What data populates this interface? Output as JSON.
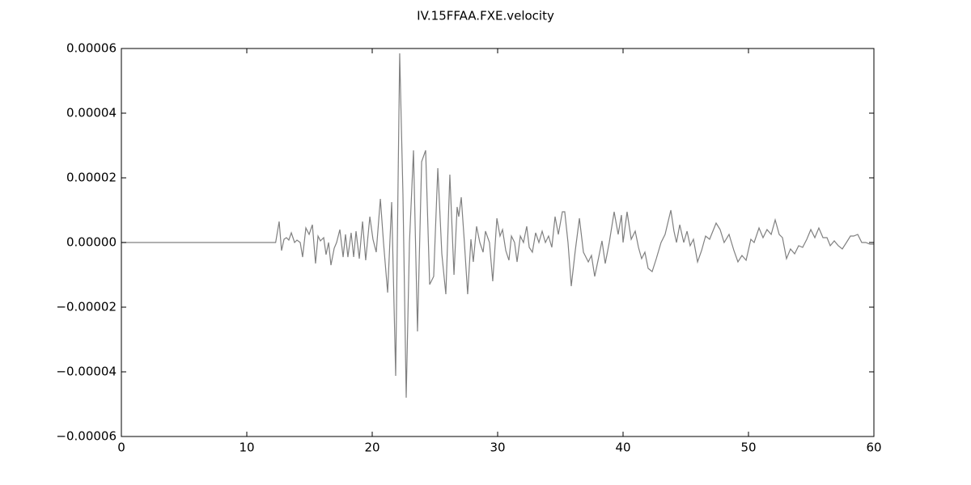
{
  "chart_data": {
    "type": "line",
    "title": "IV.15FFAA.FXE.velocity",
    "color": "#808080",
    "xlim": [
      0,
      60
    ],
    "xticks": [
      0,
      10,
      20,
      30,
      40,
      50,
      60
    ],
    "ylim": [
      -6e-05,
      6e-05
    ],
    "yticks": [
      {
        "value": -6e-05,
        "label": "−0.00006"
      },
      {
        "value": -4e-05,
        "label": "−0.00004"
      },
      {
        "value": -2e-05,
        "label": "−0.00002"
      },
      {
        "value": 0,
        "label": "0.00000"
      },
      {
        "value": 2e-05,
        "label": "0.00002"
      },
      {
        "value": 4e-05,
        "label": "0.00004"
      },
      {
        "value": 6e-05,
        "label": "0.00006"
      }
    ],
    "x": [
      0,
      12.3,
      12.58,
      12.77,
      12.97,
      13.16,
      13.35,
      13.55,
      13.81,
      14.0,
      14.26,
      14.45,
      14.71,
      14.97,
      15.23,
      15.48,
      15.68,
      15.87,
      16.13,
      16.32,
      16.52,
      16.71,
      16.97,
      17.16,
      17.42,
      17.68,
      17.87,
      18.06,
      18.32,
      18.52,
      18.71,
      18.97,
      19.23,
      19.48,
      19.81,
      20.06,
      20.32,
      20.65,
      20.9,
      21.23,
      21.55,
      21.87,
      22.19,
      22.45,
      22.71,
      22.97,
      23.29,
      23.61,
      23.94,
      24.26,
      24.58,
      24.9,
      25.23,
      25.55,
      25.87,
      26.19,
      26.52,
      26.77,
      26.9,
      27.1,
      27.35,
      27.61,
      27.87,
      28.06,
      28.32,
      28.58,
      28.84,
      29.03,
      29.35,
      29.61,
      29.94,
      30.19,
      30.39,
      30.65,
      30.9,
      31.1,
      31.35,
      31.55,
      31.81,
      32.06,
      32.32,
      32.52,
      32.77,
      33.03,
      33.29,
      33.55,
      33.81,
      34.06,
      34.32,
      34.58,
      34.84,
      35.16,
      35.35,
      35.61,
      35.87,
      36.19,
      36.52,
      36.84,
      37.23,
      37.48,
      37.74,
      38.06,
      38.32,
      38.58,
      38.9,
      39.29,
      39.61,
      39.87,
      40.0,
      40.32,
      40.65,
      40.97,
      41.23,
      41.48,
      41.74,
      42.0,
      42.32,
      42.65,
      43.03,
      43.35,
      43.81,
      44.06,
      44.26,
      44.52,
      44.84,
      45.1,
      45.35,
      45.61,
      45.94,
      46.26,
      46.58,
      46.9,
      47.42,
      47.74,
      48.06,
      48.45,
      48.84,
      49.16,
      49.48,
      49.81,
      50.19,
      50.45,
      50.84,
      51.16,
      51.48,
      51.81,
      52.13,
      52.45,
      52.71,
      53.03,
      53.35,
      53.68,
      54.0,
      54.32,
      54.65,
      54.97,
      55.29,
      55.61,
      55.94,
      56.26,
      56.52,
      56.84,
      57.16,
      57.48,
      57.81,
      58.13,
      58.39,
      58.71,
      59.03,
      59.35,
      59.68,
      60
    ],
    "values": [
      0,
      0,
      6.5e-06,
      -2.5e-06,
      1e-06,
      1.5e-06,
      7.5e-07,
      3e-06,
      0,
      7.5e-07,
      0,
      -4.5e-06,
      4.5e-06,
      2.5e-06,
      5.5e-06,
      -6.5e-06,
      2e-06,
      5e-07,
      1.5e-06,
      -3.75e-06,
      0,
      -7e-06,
      -1.75e-06,
      0,
      4e-06,
      -4.5e-06,
      2.5e-06,
      -4.5e-06,
      3e-06,
      -4.5e-06,
      3.5e-06,
      -5e-06,
      6.5e-06,
      -5.5e-06,
      8e-06,
      1e-06,
      -3e-06,
      1.35e-05,
      0,
      -1.55e-05,
      1.25e-05,
      -4.125e-05,
      5.85e-05,
      1.5e-05,
      -4.8e-05,
      0,
      2.85e-05,
      -2.75e-05,
      2.5e-05,
      2.85e-05,
      -1.3e-05,
      -1.05e-05,
      2.3e-05,
      -3.5e-06,
      -1.6e-05,
      2.1e-05,
      -1e-05,
      1.1e-05,
      8e-06,
      1.4e-05,
      0,
      -1.6e-05,
      1e-06,
      -6e-06,
      5e-06,
      0,
      -3e-06,
      3.5e-06,
      0,
      -1.2e-05,
      7.5e-06,
      2e-06,
      4e-06,
      -2.5e-06,
      -5.5e-06,
      2e-06,
      0,
      -6e-06,
      2e-06,
      0,
      5e-06,
      -1.5e-06,
      -3e-06,
      3e-06,
      0,
      3.5e-06,
      0,
      2e-06,
      -1.5e-06,
      8e-06,
      2.5e-06,
      9.5e-06,
      9.5e-06,
      0,
      -1.35e-05,
      -2.5e-06,
      7.5e-06,
      -3e-06,
      -6e-06,
      -4e-06,
      -1.05e-05,
      -4.5e-06,
      5e-07,
      -6.5e-06,
      0,
      9.5e-06,
      2.5e-06,
      8.5e-06,
      0,
      9.5e-06,
      1e-06,
      3.5e-06,
      -1.5e-06,
      -5e-06,
      -3e-06,
      -8e-06,
      -9e-06,
      -5e-06,
      0,
      2.5e-06,
      1e-05,
      3.5e-06,
      0,
      5.5e-06,
      0,
      3.5e-06,
      -1e-06,
      1e-06,
      -6e-06,
      -2.5e-06,
      2e-06,
      1e-06,
      6e-06,
      4e-06,
      0,
      2.5e-06,
      -2.5e-06,
      -6e-06,
      -4e-06,
      -5.5e-06,
      1e-06,
      0,
      4.5e-06,
      1.5e-06,
      4e-06,
      2.5e-06,
      7e-06,
      2.5e-06,
      1.5e-06,
      -5e-06,
      -2e-06,
      -3.5e-06,
      -1e-06,
      -1.5e-06,
      1e-06,
      4e-06,
      1.5e-06,
      4.5e-06,
      1.5e-06,
      1.5e-06,
      -1e-06,
      5e-07,
      -1e-06,
      -2e-06,
      0,
      2e-06,
      2e-06,
      2.5e-06,
      0,
      0,
      -5e-07,
      -5e-07
    ]
  }
}
